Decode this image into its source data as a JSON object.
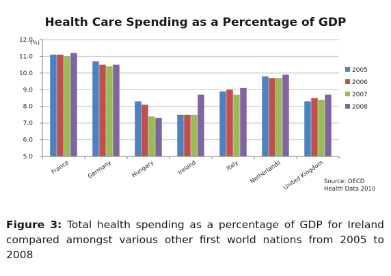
{
  "chart_data": {
    "type": "bar",
    "title": "Health Care Spending as a Percentage of GDP",
    "ylabel": "(%)",
    "xlabel": "",
    "ylim": [
      5.0,
      12.0
    ],
    "yticks": [
      "12.0",
      "11.0",
      "10.0",
      "9.0",
      "8.0",
      "7.0",
      "6.0",
      "5.0"
    ],
    "ytick_values": [
      12,
      11,
      10,
      9,
      8,
      7,
      6,
      5
    ],
    "grid": true,
    "legend_position": "right",
    "categories": [
      "France",
      "Germany",
      "Hungary",
      "Ireland",
      "Italy",
      "Netherlands",
      "United Kingdom"
    ],
    "series": [
      {
        "name": "2005",
        "color": "#4f81bd",
        "values": [
          11.1,
          10.7,
          8.3,
          7.5,
          8.9,
          9.8,
          8.3
        ]
      },
      {
        "name": "2006",
        "color": "#c0504d",
        "values": [
          11.1,
          10.5,
          8.1,
          7.5,
          9.0,
          9.7,
          8.5
        ]
      },
      {
        "name": "2007",
        "color": "#9bbb59",
        "values": [
          11.0,
          10.4,
          7.4,
          7.5,
          8.7,
          9.7,
          8.4
        ]
      },
      {
        "name": "2008",
        "color": "#8064a2",
        "values": [
          11.2,
          10.5,
          7.3,
          8.7,
          9.1,
          9.9,
          8.7
        ]
      }
    ],
    "source": [
      "Source: OECD",
      "Health Data 2010"
    ]
  },
  "caption": {
    "label": "Figure 3:",
    "text": " Total health spending as a percentage of GDP for Ireland compared amongst various other first world nations from 2005 to 2008"
  }
}
